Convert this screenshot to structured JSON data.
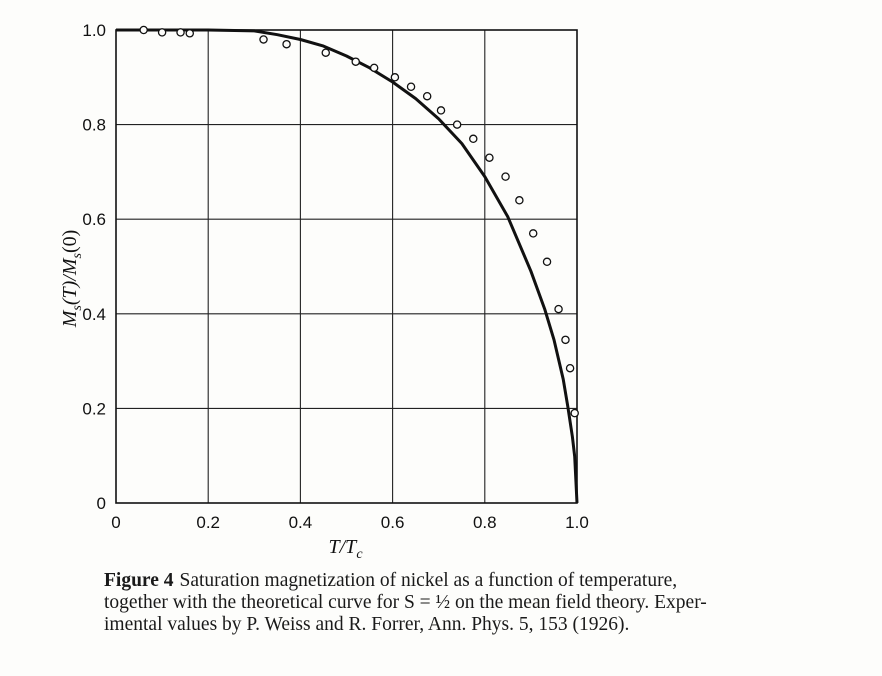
{
  "chart_data": {
    "type": "line",
    "title": "",
    "xlabel": "T/T_c",
    "ylabel": "M_s(T)/M_s(0)",
    "xlim": [
      0,
      1.0
    ],
    "ylim": [
      0,
      1.0
    ],
    "grid": true,
    "x_ticks": [
      "0",
      "0.2",
      "0.4",
      "0.6",
      "0.8",
      "1.0"
    ],
    "y_ticks": [
      "0",
      "0.2",
      "0.4",
      "0.6",
      "0.8",
      "1.0"
    ],
    "series": [
      {
        "style": "solid-curve",
        "x": [
          0.0,
          0.1,
          0.2,
          0.3,
          0.35,
          0.4,
          0.45,
          0.5,
          0.55,
          0.6,
          0.65,
          0.7,
          0.75,
          0.8,
          0.85,
          0.9,
          0.93,
          0.95,
          0.97,
          0.98,
          0.99,
          0.995,
          1.0
        ],
        "y": [
          1.0,
          1.0,
          1.0,
          0.998,
          0.99,
          0.98,
          0.966,
          0.945,
          0.92,
          0.89,
          0.855,
          0.812,
          0.76,
          0.69,
          0.605,
          0.49,
          0.41,
          0.345,
          0.262,
          0.204,
          0.14,
          0.098,
          0.0
        ]
      },
      {
        "style": "open-circles",
        "x": [
          0.06,
          0.1,
          0.14,
          0.16,
          0.32,
          0.37,
          0.455,
          0.52,
          0.56,
          0.605,
          0.64,
          0.675,
          0.705,
          0.74,
          0.775,
          0.81,
          0.845,
          0.875,
          0.905,
          0.935,
          0.96,
          0.975,
          0.985,
          0.995
        ],
        "y": [
          1.0,
          0.995,
          0.995,
          0.993,
          0.98,
          0.97,
          0.952,
          0.933,
          0.92,
          0.9,
          0.88,
          0.86,
          0.83,
          0.8,
          0.77,
          0.73,
          0.69,
          0.64,
          0.57,
          0.51,
          0.41,
          0.345,
          0.285,
          0.19
        ]
      }
    ]
  },
  "caption": {
    "label": "Figure 4",
    "text": "Saturation magnetization of nickel as a function of temperature,\ntogether with the theoretical curve for S = ½ on the mean field theory. Exper-\nimental values by P. Weiss and R. Forrer, Ann. Phys. 5, 153 (1926)."
  }
}
